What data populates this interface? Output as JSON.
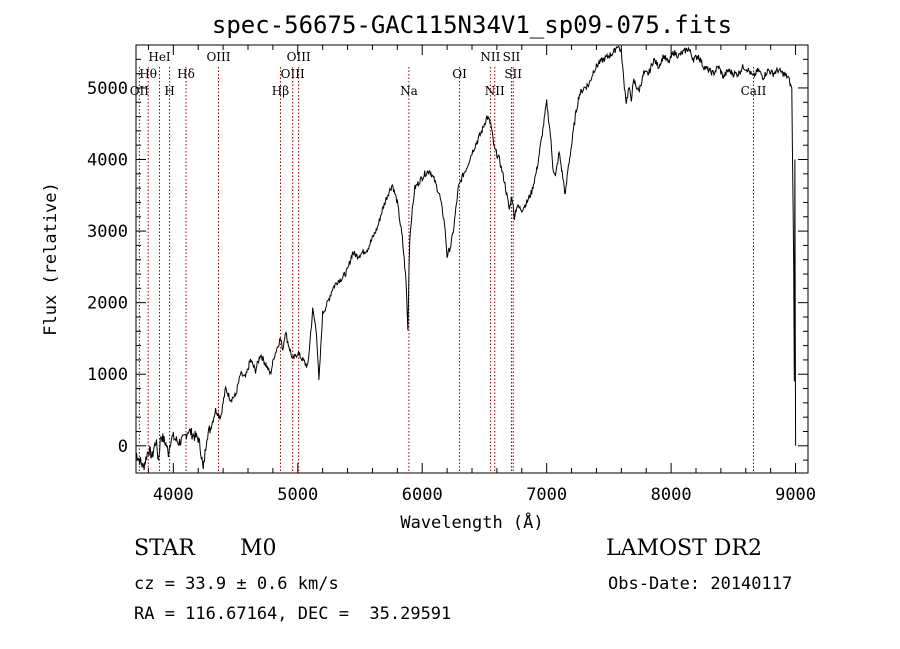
{
  "header": {
    "title": "spec-56675-GAC115N34V1_sp09-075.fits"
  },
  "info": {
    "object_type": "STAR",
    "object_class": "M0",
    "survey": "LAMOST DR2",
    "redshift": "cz = 33.9 ± 0.6 km/s",
    "obs_date": "Obs-Date: 20140117",
    "coords": "RA = 116.67164, DEC =  35.29591"
  },
  "chart_data": {
    "type": "line",
    "title": "spec-56675-GAC115N34V1_sp09-075.fits",
    "xlabel": "Wavelength (Å)",
    "ylabel": "Flux (relative)",
    "xlim": [
      3700,
      9100
    ],
    "ylim": [
      -380,
      5600
    ],
    "xticks": [
      4000,
      5000,
      6000,
      7000,
      8000,
      9000
    ],
    "yticks": [
      0,
      1000,
      2000,
      3000,
      4000,
      5000
    ],
    "grid": false,
    "line_color": "#000000",
    "marker_color": "#8b0000",
    "spectral_lines": [
      {
        "label": "OII",
        "x": 3727,
        "row": 2
      },
      {
        "label": "Hθ",
        "x": 3798,
        "row": 1
      },
      {
        "label": "HeI",
        "x": 3889,
        "row": 0
      },
      {
        "label": "H",
        "x": 3970,
        "row": 2
      },
      {
        "label": "Hδ",
        "x": 4102,
        "row": 1
      },
      {
        "label": "OIII",
        "x": 4363,
        "row": 0
      },
      {
        "label": "Hβ",
        "x": 4861,
        "row": 2
      },
      {
        "label": "OIII",
        "x": 4959,
        "row": 1
      },
      {
        "label": "OIII",
        "x": 5007,
        "row": 0
      },
      {
        "label": "Na",
        "x": 5893,
        "row": 2
      },
      {
        "label": "OI",
        "x": 6300,
        "row": 1
      },
      {
        "label": "NII",
        "x": 6548,
        "row": 0
      },
      {
        "label": "NII",
        "x": 6583,
        "row": 2
      },
      {
        "label": "SII",
        "x": 6717,
        "row": 0
      },
      {
        "label": "SII",
        "x": 6731,
        "row": 1
      },
      {
        "label": "CaII",
        "x": 8662,
        "row": 2
      }
    ],
    "series": [
      {
        "x": [
          3700,
          3760,
          3800,
          3830,
          3860,
          3880,
          3900,
          3940,
          3960,
          3980,
          4000,
          4040,
          4080,
          4120,
          4160,
          4200,
          4220,
          4240,
          4270,
          4300,
          4340,
          4380,
          4420,
          4460,
          4500,
          4540,
          4580,
          4620,
          4660,
          4700,
          4740,
          4780,
          4810,
          4840,
          4860,
          4880,
          4900,
          4920,
          4960,
          5000,
          5040,
          5080,
          5120,
          5150,
          5170,
          5200,
          5240,
          5280,
          5320,
          5360,
          5400,
          5440,
          5480,
          5520,
          5560,
          5600,
          5640,
          5680,
          5720,
          5760,
          5800,
          5840,
          5870,
          5885,
          5893,
          5900,
          5915,
          5940,
          5980,
          6020,
          6060,
          6100,
          6140,
          6180,
          6200,
          6230,
          6250,
          6270,
          6290,
          6320,
          6360,
          6400,
          6440,
          6480,
          6520,
          6550,
          6563,
          6580,
          6620,
          6660,
          6700,
          6720,
          6740,
          6760,
          6800,
          6840,
          6880,
          6920,
          6960,
          7000,
          7030,
          7050,
          7070,
          7100,
          7130,
          7150,
          7170,
          7200,
          7230,
          7260,
          7300,
          7340,
          7380,
          7420,
          7460,
          7500,
          7540,
          7570,
          7600,
          7620,
          7640,
          7660,
          7680,
          7700,
          7740,
          7780,
          7820,
          7860,
          7900,
          7940,
          7980,
          8020,
          8060,
          8100,
          8140,
          8180,
          8220,
          8260,
          8300,
          8340,
          8380,
          8420,
          8460,
          8500,
          8540,
          8580,
          8620,
          8660,
          8700,
          8740,
          8780,
          8820,
          8860,
          8900,
          8940,
          8970,
          8985,
          8990,
          8995,
          9000
        ],
        "y": [
          -100,
          -300,
          -50,
          -150,
          80,
          -200,
          150,
          30,
          -100,
          100,
          120,
          50,
          80,
          220,
          150,
          100,
          -50,
          -350,
          150,
          250,
          500,
          400,
          800,
          650,
          700,
          1000,
          950,
          1200,
          1050,
          1280,
          1150,
          1000,
          1250,
          1400,
          1500,
          1350,
          1600,
          1450,
          1200,
          1300,
          1200,
          1100,
          1900,
          1600,
          900,
          1850,
          2000,
          2200,
          2300,
          2350,
          2450,
          2700,
          2650,
          2700,
          2750,
          2900,
          3050,
          3300,
          3500,
          3650,
          3400,
          2900,
          2300,
          1600,
          2400,
          2900,
          3200,
          3600,
          3700,
          3800,
          3850,
          3700,
          3500,
          3100,
          2650,
          2800,
          3000,
          3300,
          3600,
          3750,
          3900,
          4100,
          4250,
          4400,
          4600,
          4500,
          4350,
          4150,
          4000,
          3700,
          3300,
          3500,
          3200,
          3350,
          3300,
          3400,
          3550,
          3850,
          4300,
          4800,
          4350,
          3900,
          3750,
          4100,
          3750,
          3500,
          3850,
          4200,
          4600,
          4900,
          5000,
          5050,
          5250,
          5350,
          5400,
          5450,
          5500,
          5600,
          5500,
          5100,
          4800,
          5000,
          4850,
          5100,
          4950,
          5200,
          5200,
          5400,
          5300,
          5450,
          5350,
          5500,
          5450,
          5500,
          5550,
          5400,
          5450,
          5300,
          5250,
          5200,
          5300,
          5150,
          5250,
          5200,
          5200,
          5300,
          5250,
          5150,
          5250,
          5150,
          5250,
          5200,
          5250,
          5200,
          5150,
          5000,
          2500,
          900,
          4000,
          0
        ]
      }
    ]
  }
}
